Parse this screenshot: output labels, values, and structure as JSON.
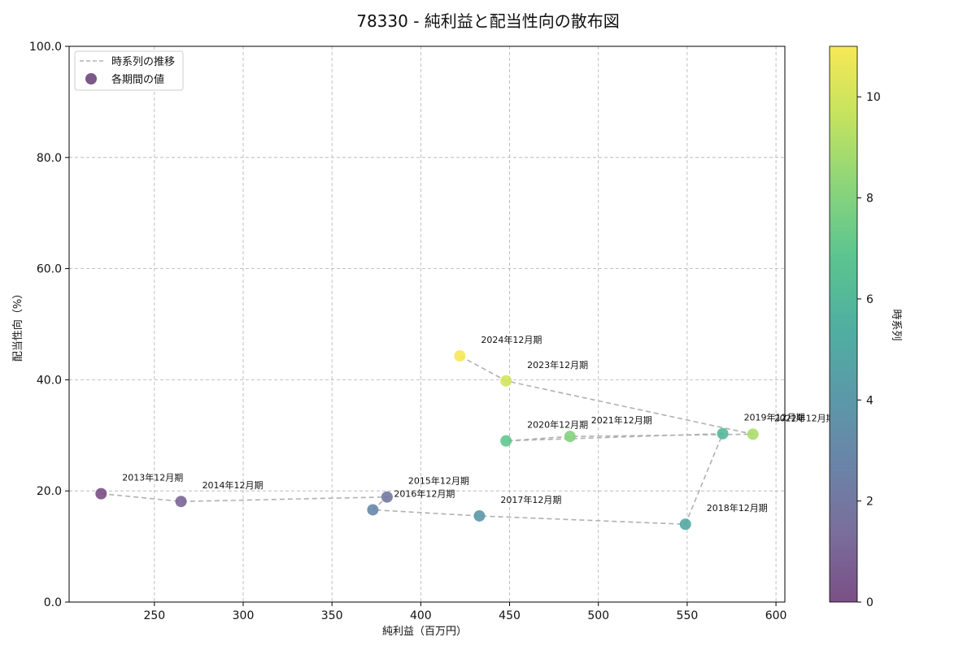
{
  "chart_data": {
    "type": "scatter",
    "title": "78330 - 純利益と配当性向の散布図",
    "xlabel": "純利益（百万円）",
    "ylabel": "配当性向（%）",
    "xlim": [
      202,
      605
    ],
    "ylim": [
      0,
      100
    ],
    "x_ticks": [
      250,
      300,
      350,
      400,
      450,
      500,
      550,
      600
    ],
    "y_ticks": [
      0,
      20,
      40,
      60,
      80,
      100
    ],
    "y_tick_labels": [
      "0.0",
      "20.0",
      "40.0",
      "60.0",
      "80.0",
      "100.0"
    ],
    "grid": true,
    "legend": {
      "position": "top-left",
      "line_label": "時系列の推移",
      "point_label": "各期間の値"
    },
    "colorbar": {
      "label": "時系列",
      "range": [
        0,
        11
      ],
      "ticks": [
        0,
        2,
        4,
        6,
        8,
        10
      ],
      "colormap": "viridis"
    },
    "points": [
      {
        "label": "2013年12月期",
        "x": 220,
        "y": 19.5,
        "t": 0
      },
      {
        "label": "2014年12月期",
        "x": 265,
        "y": 18.1,
        "t": 1
      },
      {
        "label": "2015年12月期",
        "x": 381,
        "y": 18.9,
        "t": 2
      },
      {
        "label": "2016年12月期",
        "x": 373,
        "y": 16.6,
        "t": 3
      },
      {
        "label": "2017年12月期",
        "x": 433,
        "y": 15.5,
        "t": 4
      },
      {
        "label": "2018年12月期",
        "x": 549,
        "y": 14.0,
        "t": 5
      },
      {
        "label": "2019年12月期",
        "x": 570,
        "y": 30.3,
        "t": 6
      },
      {
        "label": "2020年12月期",
        "x": 448,
        "y": 29.0,
        "t": 7
      },
      {
        "label": "2021年12月期",
        "x": 484,
        "y": 29.8,
        "t": 8
      },
      {
        "label": "2022年12月期",
        "x": 587,
        "y": 30.2,
        "t": 9
      },
      {
        "label": "2023年12月期",
        "x": 448,
        "y": 39.8,
        "t": 10
      },
      {
        "label": "2024年12月期",
        "x": 422,
        "y": 44.3,
        "t": 11
      }
    ]
  }
}
